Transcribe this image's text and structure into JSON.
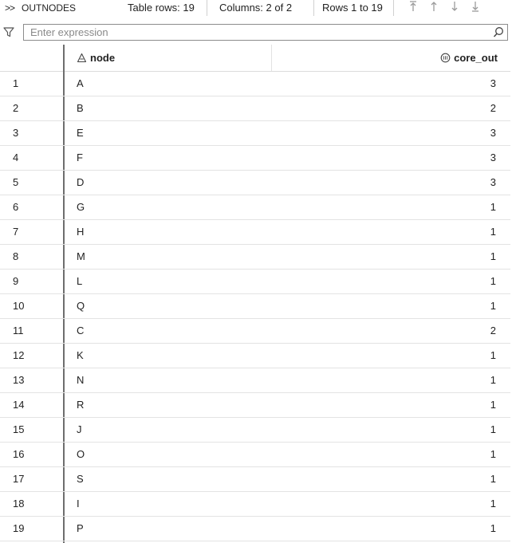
{
  "toolbar": {
    "expand_glyph": ">>",
    "dataset_name": "OUTNODES",
    "table_rows": "Table rows: 19",
    "columns": "Columns: 2 of 2",
    "rows_range": "Rows 1 to 19",
    "nav_icons": [
      "first-page-icon",
      "previous-page-icon",
      "next-page-icon",
      "last-page-icon"
    ]
  },
  "filter": {
    "placeholder": "Enter expression",
    "value": ""
  },
  "columns": [
    {
      "label": "node",
      "type_icon": "character-column-icon"
    },
    {
      "label": "core_out",
      "type_icon": "numeric-column-icon"
    }
  ],
  "rows": [
    {
      "index": "1",
      "node": "A",
      "core_out": "3"
    },
    {
      "index": "2",
      "node": "B",
      "core_out": "2"
    },
    {
      "index": "3",
      "node": "E",
      "core_out": "3"
    },
    {
      "index": "4",
      "node": "F",
      "core_out": "3"
    },
    {
      "index": "5",
      "node": "D",
      "core_out": "3"
    },
    {
      "index": "6",
      "node": "G",
      "core_out": "1"
    },
    {
      "index": "7",
      "node": "H",
      "core_out": "1"
    },
    {
      "index": "8",
      "node": "M",
      "core_out": "1"
    },
    {
      "index": "9",
      "node": "L",
      "core_out": "1"
    },
    {
      "index": "10",
      "node": "Q",
      "core_out": "1"
    },
    {
      "index": "11",
      "node": "C",
      "core_out": "2"
    },
    {
      "index": "12",
      "node": "K",
      "core_out": "1"
    },
    {
      "index": "13",
      "node": "N",
      "core_out": "1"
    },
    {
      "index": "14",
      "node": "R",
      "core_out": "1"
    },
    {
      "index": "15",
      "node": "J",
      "core_out": "1"
    },
    {
      "index": "16",
      "node": "O",
      "core_out": "1"
    },
    {
      "index": "17",
      "node": "S",
      "core_out": "1"
    },
    {
      "index": "18",
      "node": "I",
      "core_out": "1"
    },
    {
      "index": "19",
      "node": "P",
      "core_out": "1"
    }
  ]
}
